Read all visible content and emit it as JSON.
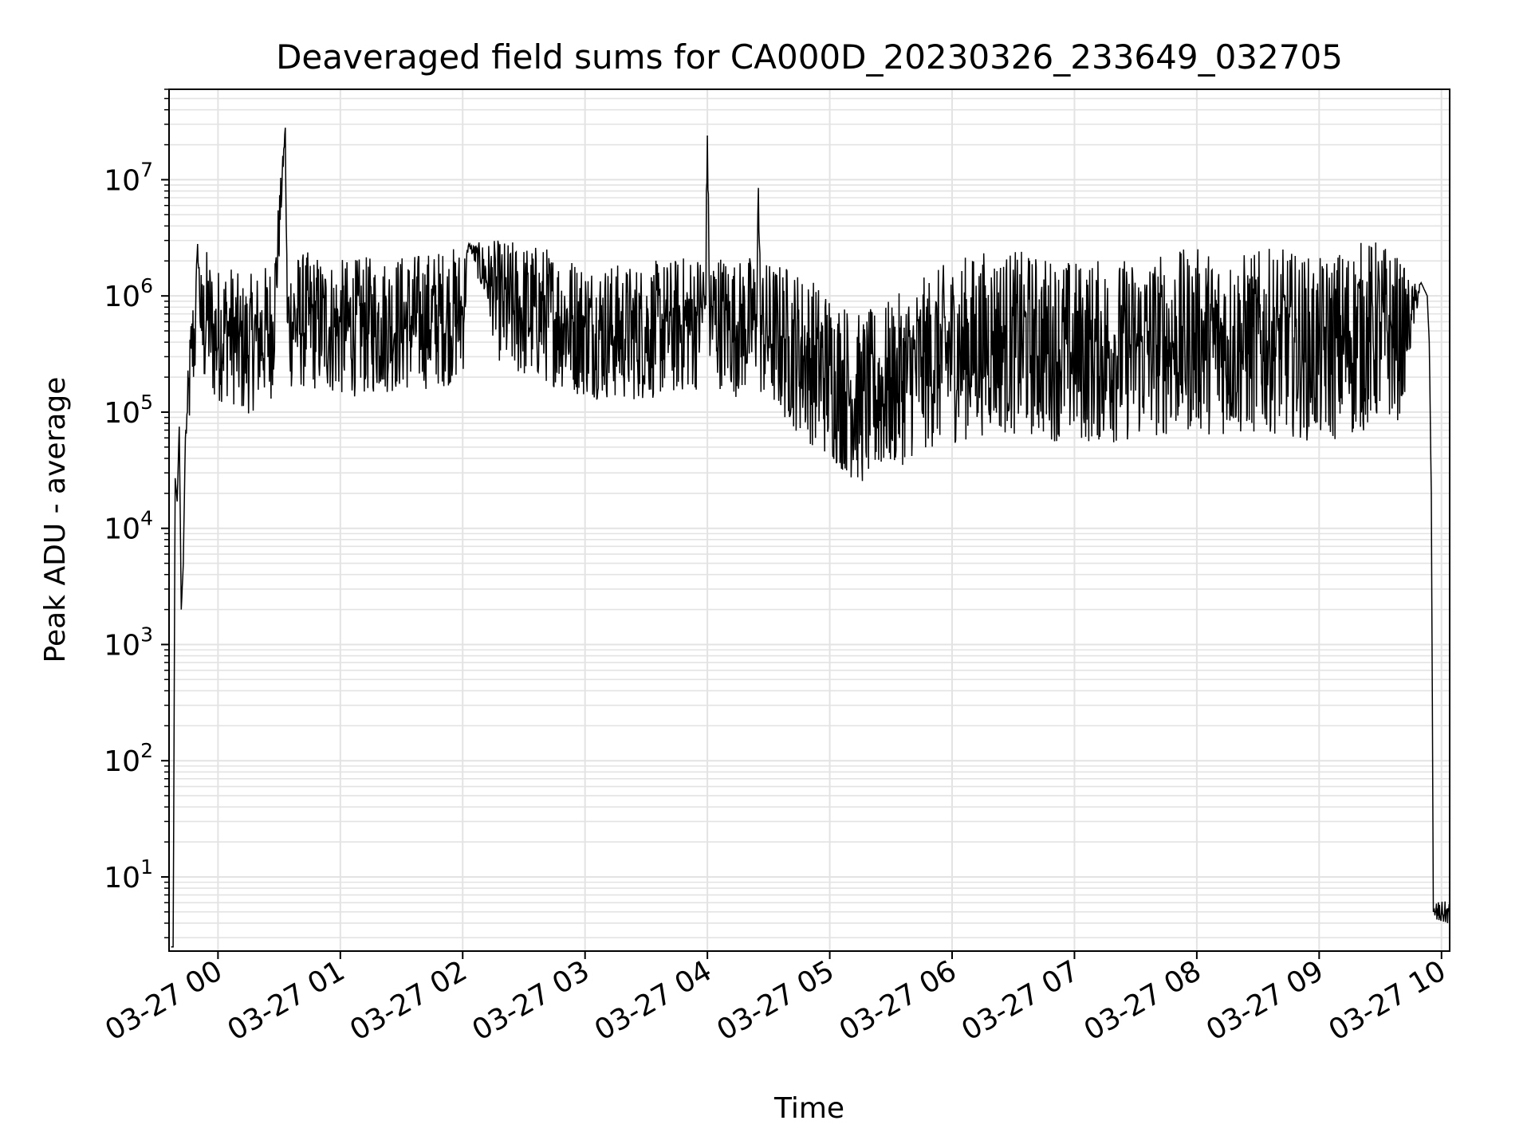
{
  "chart_data": {
    "type": "line",
    "title": "Deaveraged field sums for CA000D_20230326_233649_032705",
    "xlabel": "Time",
    "ylabel": "Peak ADU - average",
    "yscale": "log",
    "grid": true,
    "line_color": "#000000",
    "grid_color": "#e3e3e3",
    "x_ticks": [
      "03-27 00",
      "03-27 01",
      "03-27 02",
      "03-27 03",
      "03-27 04",
      "03-27 05",
      "03-27 06",
      "03-27 07",
      "03-27 08",
      "03-27 09",
      "03-27 10"
    ],
    "y_ticks": [
      {
        "base": "10",
        "exp": "1"
      },
      {
        "base": "10",
        "exp": "2"
      },
      {
        "base": "10",
        "exp": "3"
      },
      {
        "base": "10",
        "exp": "4"
      },
      {
        "base": "10",
        "exp": "5"
      },
      {
        "base": "10",
        "exp": "6"
      },
      {
        "base": "10",
        "exp": "7"
      }
    ],
    "xlim": [
      "2023-03-26 23:36",
      "2023-03-27 10:04"
    ],
    "ylim": [
      2.3,
      60000000
    ],
    "series": [
      {
        "x": [
          "2023-03-26 23:37",
          "2023-03-26 23:38",
          "2023-03-26 23:39",
          "2023-03-26 23:40",
          "2023-03-26 23:41",
          "2023-03-26 23:42",
          "2023-03-26 23:43",
          "2023-03-26 23:44",
          "2023-03-26 23:45",
          "2023-03-26 23:47",
          "2023-03-26 23:49",
          "2023-03-26 23:50",
          "2023-03-26 23:52",
          "2023-03-26 23:55",
          "2023-03-26 23:58",
          "2023-03-27 00:05",
          "2023-03-27 00:12",
          "2023-03-27 00:20",
          "2023-03-27 00:27",
          "2023-03-27 00:33",
          "2023-03-27 00:34",
          "2023-03-27 00:35",
          "2023-03-27 00:45",
          "2023-03-27 01:00",
          "2023-03-27 01:20",
          "2023-03-27 01:40",
          "2023-03-27 02:00",
          "2023-03-27 02:03",
          "2023-03-27 02:20",
          "2023-03-27 02:40",
          "2023-03-27 03:00",
          "2023-03-27 03:20",
          "2023-03-27 03:40",
          "2023-03-27 03:55",
          "2023-03-27 03:59",
          "2023-03-27 04:00",
          "2023-03-27 04:01",
          "2023-03-27 04:15",
          "2023-03-27 04:24",
          "2023-03-27 04:25",
          "2023-03-27 04:26",
          "2023-03-27 04:40",
          "2023-03-27 05:00",
          "2023-03-27 05:15",
          "2023-03-27 05:30",
          "2023-03-27 05:45",
          "2023-03-27 06:00",
          "2023-03-27 06:20",
          "2023-03-27 06:40",
          "2023-03-27 07:00",
          "2023-03-27 07:20",
          "2023-03-27 07:40",
          "2023-03-27 08:00",
          "2023-03-27 08:20",
          "2023-03-27 08:40",
          "2023-03-27 09:00",
          "2023-03-27 09:15",
          "2023-03-27 09:30",
          "2023-03-27 09:40",
          "2023-03-27 09:45",
          "2023-03-27 09:50",
          "2023-03-27 09:53",
          "2023-03-27 09:54",
          "2023-03-27 09:55",
          "2023-03-27 09:56",
          "2023-03-27 09:57",
          "2023-03-27 10:00",
          "2023-03-27 10:04"
        ],
        "y": [
          2.5,
          2.5,
          27000,
          17000,
          75000,
          2000,
          5000,
          60000,
          100000,
          350000,
          600000,
          2800000,
          500000,
          800000,
          500000,
          600000,
          400000,
          500000,
          600000,
          28000000,
          600000,
          700000,
          700000,
          600000,
          650000,
          700000,
          800000,
          2800000,
          900000,
          800000,
          600000,
          550000,
          600000,
          700000,
          1000000,
          24000000,
          800000,
          600000,
          700000,
          8500000,
          600000,
          450000,
          250000,
          150000,
          200000,
          300000,
          400000,
          500000,
          450000,
          400000,
          400000,
          450000,
          500000,
          450000,
          500000,
          400000,
          500000,
          600000,
          500000,
          700000,
          1300000,
          1000000,
          400000,
          20000,
          5,
          5,
          5,
          5
        ],
        "noise": [
          0,
          0,
          0,
          0,
          0,
          0,
          0,
          0,
          0.3,
          0.5,
          0.5,
          0,
          0.6,
          0.6,
          0.6,
          0.6,
          0.6,
          0.6,
          0.6,
          0,
          0.6,
          0.6,
          0.6,
          0.6,
          0.6,
          0.6,
          0.6,
          0,
          0.6,
          0.6,
          0.6,
          0.6,
          0.6,
          0.6,
          0.6,
          0,
          0.6,
          0.6,
          0.6,
          0,
          0.6,
          0.7,
          0.75,
          0.75,
          0.75,
          0.75,
          0.8,
          0.8,
          0.8,
          0.8,
          0.8,
          0.8,
          0.8,
          0.8,
          0.8,
          0.8,
          0.85,
          0.8,
          0.7,
          0.3,
          0,
          0,
          0,
          0,
          0,
          0.1,
          0.1,
          0.1
        ]
      }
    ]
  }
}
